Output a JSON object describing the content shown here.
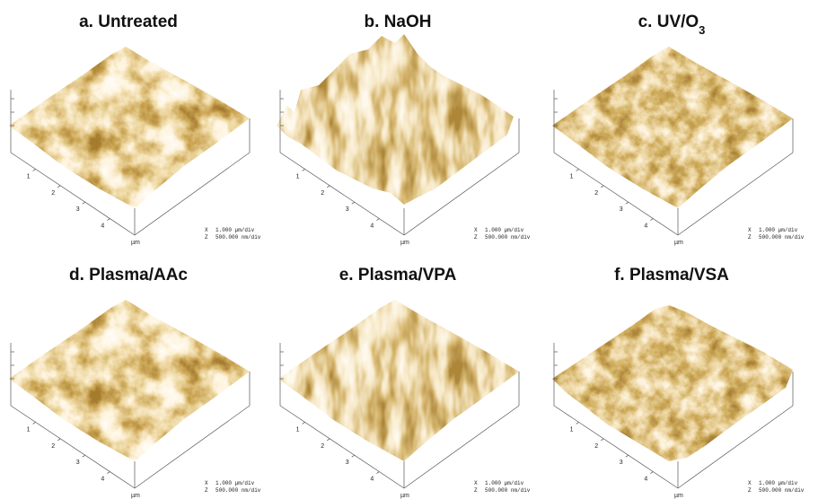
{
  "panels": [
    {
      "title": "a. Untreated"
    },
    {
      "title": "b. NaOH"
    },
    {
      "title": "c. UV/O",
      "title_subscript": "3"
    },
    {
      "title": "d. Plasma/AAc"
    },
    {
      "title": "e. Plasma/VPA"
    },
    {
      "title": "f. Plasma/VSA"
    }
  ],
  "axis_ticks": [
    "1",
    "2",
    "3",
    "4"
  ],
  "axis_unit": "µm",
  "scale": {
    "x_label": "X",
    "x_value": "1.000 µm/div",
    "z_label": "Z",
    "z_value": "500.000 nm/div"
  }
}
